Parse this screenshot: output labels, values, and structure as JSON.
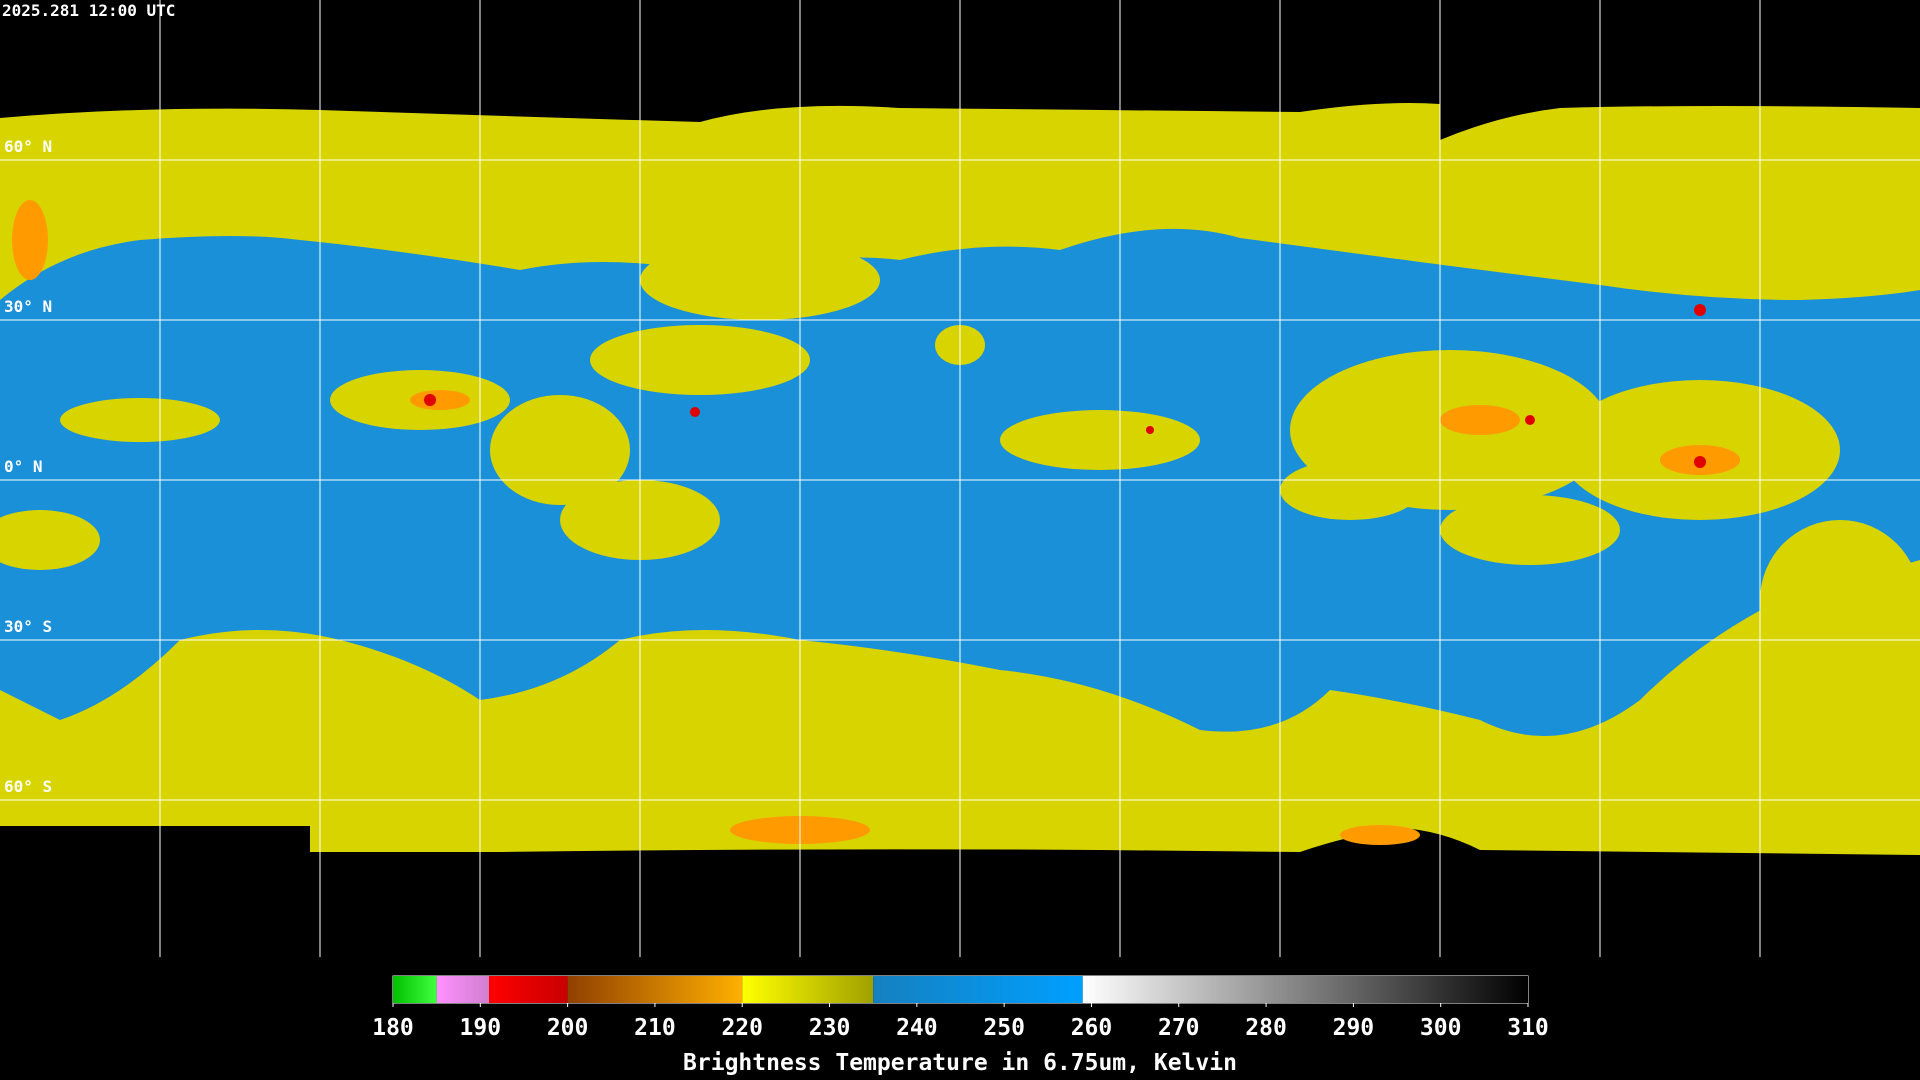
{
  "timestamp": "2025.281 12:00 UTC",
  "latitudes": [
    {
      "value": 60,
      "label": "60° N"
    },
    {
      "value": 30,
      "label": "30° N"
    },
    {
      "value": 0,
      "label": "0° N"
    },
    {
      "value": -30,
      "label": "30° S"
    },
    {
      "value": -60,
      "label": "60° S"
    }
  ],
  "colorbar": {
    "label": "Brightness Temperature in 6.75um, Kelvin",
    "range": [
      180,
      310
    ],
    "ticks": [
      180,
      190,
      200,
      210,
      220,
      230,
      240,
      250,
      260,
      270,
      280,
      290,
      300,
      310
    ],
    "segments": [
      {
        "from": 180,
        "to": 185,
        "colors": [
          "#00c000",
          "#40ff40"
        ]
      },
      {
        "from": 185,
        "to": 191,
        "colors": [
          "#ff90ff",
          "#d080d0"
        ]
      },
      {
        "from": 191,
        "to": 200,
        "colors": [
          "#ff0000",
          "#c80000"
        ]
      },
      {
        "from": 200,
        "to": 220,
        "colors": [
          "#904000",
          "#ffb000"
        ]
      },
      {
        "from": 220,
        "to": 235,
        "colors": [
          "#ffff00",
          "#a0a000"
        ]
      },
      {
        "from": 235,
        "to": 259,
        "colors": [
          "#1580c0",
          "#00a0ff"
        ]
      },
      {
        "from": 259,
        "to": 310,
        "colors": [
          "#ffffff",
          "#000000"
        ]
      }
    ]
  }
}
